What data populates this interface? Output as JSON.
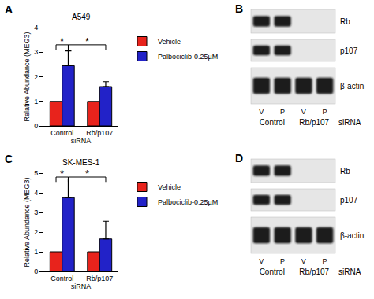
{
  "chart_data": [
    {
      "type": "bar",
      "panel": "A",
      "title": "A549",
      "x_label": "siRNA",
      "y_label": "Relative Abundance (MEG3)",
      "categories": [
        "Control",
        "Rb/p107"
      ],
      "series": [
        {
          "name": "Vehicle",
          "color": "#e8231c",
          "values": [
            1,
            1
          ]
        },
        {
          "name": "Palbociclib-0.25µM",
          "color": "#2222c8",
          "values": [
            2.45,
            1.6
          ],
          "errors": [
            0.6,
            0.2
          ]
        }
      ],
      "ylim": [
        0,
        4
      ],
      "yticks": [
        0,
        1,
        2,
        3,
        4
      ],
      "grid": false,
      "legend": "right",
      "annotations": [
        {
          "text": "*",
          "from": {
            "category": "Control",
            "series": "Vehicle"
          },
          "to": {
            "category": "Control",
            "series": "Palbociclib-0.25µM"
          },
          "y": 3.3
        },
        {
          "text": "*",
          "from": {
            "category": "Control",
            "series": "Palbociclib-0.25µM"
          },
          "to": {
            "category": "Rb/p107",
            "series": "Palbociclib-0.25µM"
          },
          "y": 3.3
        }
      ]
    },
    {
      "type": "bar",
      "panel": "C",
      "title": "SK-MES-1",
      "x_label": "siRNA",
      "y_label": "Relative Abundance (MEG3)",
      "categories": [
        "Control",
        "Rb/p107"
      ],
      "series": [
        {
          "name": "Vehicle",
          "color": "#e8231c",
          "values": [
            1,
            1
          ]
        },
        {
          "name": "Palbociclib-0.25µM",
          "color": "#2222c8",
          "values": [
            3.75,
            1.65
          ],
          "errors": [
            0.95,
            0.9
          ]
        }
      ],
      "ylim": [
        0,
        5
      ],
      "yticks": [
        0,
        1,
        2,
        3,
        4,
        5
      ],
      "grid": false,
      "legend": "right",
      "annotations": [
        {
          "text": "*",
          "from": {
            "category": "Control",
            "series": "Vehicle"
          },
          "to": {
            "category": "Control",
            "series": "Palbociclib-0.25µM"
          },
          "y": 4.8
        },
        {
          "text": "*",
          "from": {
            "category": "Control",
            "series": "Palbociclib-0.25µM"
          },
          "to": {
            "category": "Rb/p107",
            "series": "Palbociclib-0.25µM"
          },
          "y": 4.8
        }
      ]
    }
  ],
  "blots": [
    {
      "panel": "B",
      "rows": [
        {
          "label": "Rb",
          "bands": [
            true,
            true,
            false,
            false
          ]
        },
        {
          "label": "p107",
          "bands": [
            true,
            true,
            false,
            false
          ]
        },
        {
          "label": "β-actin",
          "bands": [
            true,
            true,
            true,
            true
          ]
        }
      ],
      "lanes": [
        "V",
        "P",
        "V",
        "P"
      ],
      "groups": [
        "Control",
        "Rb/p107"
      ],
      "group_suffix": "siRNA"
    },
    {
      "panel": "D",
      "rows": [
        {
          "label": "Rb",
          "bands": [
            true,
            true,
            false,
            false
          ]
        },
        {
          "label": "p107",
          "bands": [
            true,
            true,
            false,
            false
          ]
        },
        {
          "label": "β-actin",
          "bands": [
            true,
            true,
            true,
            true
          ]
        }
      ],
      "lanes": [
        "V",
        "P",
        "V",
        "P"
      ],
      "groups": [
        "Control",
        "Rb/p107"
      ],
      "group_suffix": "siRNA"
    }
  ]
}
